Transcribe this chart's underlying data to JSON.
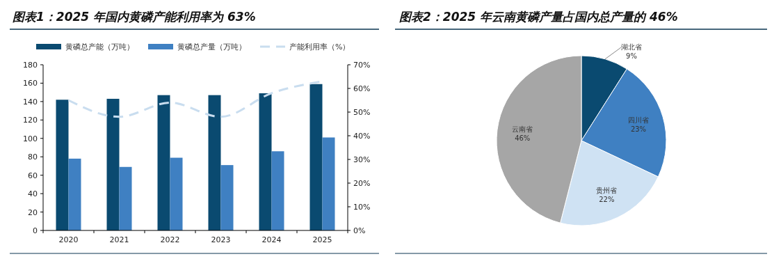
{
  "chart_data": [
    {
      "type": "bar",
      "title": "图表1：2025 年国内黄磷产能利用率为 63%",
      "categories": [
        "2020",
        "2021",
        "2022",
        "2023",
        "2024",
        "2025"
      ],
      "series": [
        {
          "name": "黄磷总产能（万吨）",
          "color": "#0a4a70",
          "values": [
            142,
            143,
            147,
            147,
            149,
            159
          ]
        },
        {
          "name": "黄磷总产量（万吨）",
          "color": "#3f80c2",
          "values": [
            78,
            69,
            79,
            71,
            86,
            101
          ]
        },
        {
          "name": "产能利用率（%）",
          "type": "line",
          "axis": "y2",
          "color": "#c9ddef",
          "line_style": "dashed",
          "values": [
            55,
            48,
            54,
            48,
            58,
            63
          ]
        }
      ],
      "ylim": [
        0,
        180
      ],
      "yticks": [
        0,
        20,
        40,
        60,
        80,
        100,
        120,
        140,
        160,
        180
      ],
      "y2lim": [
        0,
        70
      ],
      "y2ticks": [
        {
          "value": 0,
          "label": "0%"
        },
        {
          "value": 10,
          "label": "10%"
        },
        {
          "value": 20,
          "label": "20%"
        },
        {
          "value": 30,
          "label": "30%"
        },
        {
          "value": 40,
          "label": "40%"
        },
        {
          "value": 50,
          "label": "50%"
        },
        {
          "value": 60,
          "label": "60%"
        },
        {
          "value": 70,
          "label": "70%"
        }
      ],
      "legend": "top",
      "grid": false,
      "marker": "none"
    },
    {
      "type": "pie",
      "title": "图表2：2025 年云南黄磷产量占国内总产量的 46%",
      "categories": [
        "湖北省",
        "四川省",
        "贵州省",
        "云南省"
      ],
      "values": [
        9,
        23,
        22,
        46
      ],
      "colors": [
        "#0a4a70",
        "#3f80c2",
        "#cfe2f3",
        "#a6a6a6"
      ],
      "value_labels": [
        "9%",
        "23%",
        "22%",
        "46%"
      ]
    }
  ]
}
